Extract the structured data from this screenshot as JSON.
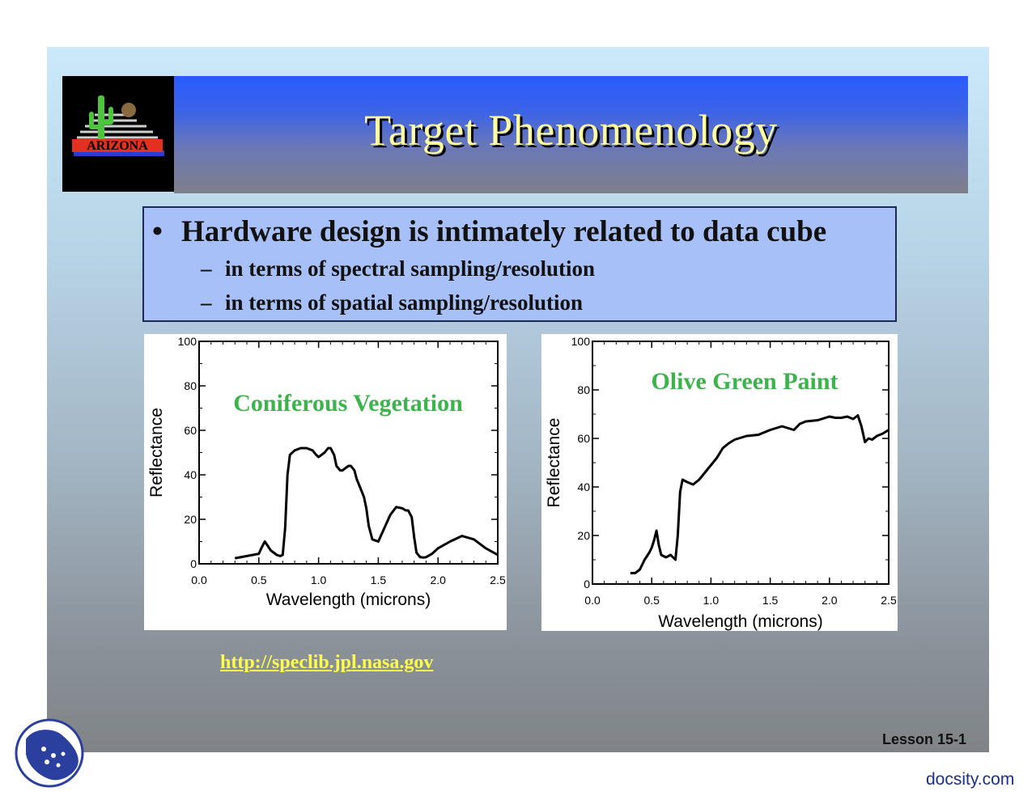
{
  "slide": {
    "title": "Target Phenomenology",
    "logo_text": "ARIZONA",
    "bullet": "Hardware design is intimately related to data cube",
    "bullet_marker": "•",
    "sub_marker": "–",
    "subbullets": [
      "in terms of spectral sampling/resolution",
      "in terms of spatial sampling/resolution"
    ],
    "link": "http://speclib.jpl.nasa.gov",
    "lesson": "Lesson 15-1",
    "watermark": "docsity.com"
  },
  "colors": {
    "title_text": "#ffffa0",
    "chart_label": "#3cb44b",
    "link": "#ffff44"
  },
  "chart_data": [
    {
      "type": "line",
      "title": "Coniferous Vegetation",
      "xlabel": "Wavelength (microns)",
      "ylabel": "Reflectance",
      "xlim": [
        0.0,
        2.5
      ],
      "ylim": [
        0,
        100
      ],
      "xticks": [
        "0.0",
        "0.5",
        "1.0",
        "1.5",
        "2.0",
        "2.5"
      ],
      "yticks": [
        "0",
        "20",
        "40",
        "60",
        "80",
        "100"
      ],
      "grid": false,
      "series": [
        {
          "x": [
            0.3,
            0.4,
            0.5,
            0.52,
            0.55,
            0.6,
            0.65,
            0.68,
            0.7,
            0.72,
            0.74,
            0.76,
            0.8,
            0.85,
            0.9,
            0.95,
            0.98,
            1.0,
            1.05,
            1.08,
            1.1,
            1.13,
            1.15,
            1.18,
            1.2,
            1.25,
            1.27,
            1.3,
            1.32,
            1.35,
            1.38,
            1.4,
            1.42,
            1.45,
            1.5,
            1.55,
            1.6,
            1.65,
            1.7,
            1.73,
            1.75,
            1.78,
            1.8,
            1.82,
            1.85,
            1.88,
            1.9,
            1.95,
            2.0,
            2.1,
            2.2,
            2.3,
            2.4,
            2.5
          ],
          "y": [
            2.5,
            3.5,
            4.5,
            7,
            10,
            6,
            4,
            3.5,
            4,
            16,
            40,
            49,
            51,
            52,
            52,
            51,
            49,
            48,
            50,
            52,
            52,
            49,
            44,
            42,
            42,
            44,
            44,
            42,
            38,
            34,
            30,
            25,
            17,
            11,
            10,
            16,
            22,
            25.5,
            25,
            24,
            24,
            21,
            12,
            5,
            3,
            2.8,
            3,
            4.5,
            7,
            10,
            12.5,
            11,
            7,
            4
          ]
        }
      ]
    },
    {
      "type": "line",
      "title": "Olive Green Paint",
      "xlabel": "Wavelength (microns)",
      "ylabel": "Reflectance",
      "xlim": [
        0.0,
        2.5
      ],
      "ylim": [
        0,
        100
      ],
      "xticks": [
        "0.0",
        "0.5",
        "1.0",
        "1.5",
        "2.0",
        "2.5"
      ],
      "yticks": [
        "0",
        "20",
        "40",
        "60",
        "80",
        "100"
      ],
      "grid": false,
      "series": [
        {
          "x": [
            0.32,
            0.36,
            0.4,
            0.44,
            0.48,
            0.5,
            0.52,
            0.54,
            0.56,
            0.58,
            0.62,
            0.66,
            0.7,
            0.72,
            0.74,
            0.76,
            0.78,
            0.8,
            0.85,
            0.9,
            0.95,
            1.0,
            1.05,
            1.1,
            1.15,
            1.2,
            1.3,
            1.4,
            1.5,
            1.6,
            1.7,
            1.75,
            1.8,
            1.9,
            2.0,
            2.05,
            2.1,
            2.15,
            2.2,
            2.24,
            2.27,
            2.3,
            2.33,
            2.36,
            2.4,
            2.45,
            2.5
          ],
          "y": [
            4.5,
            4.5,
            6,
            10,
            13,
            15,
            18,
            22,
            16,
            12,
            11,
            12,
            10,
            20,
            38,
            43,
            42.5,
            42,
            41,
            43,
            46,
            49,
            52,
            56,
            58,
            59.5,
            61,
            61.5,
            63.5,
            65,
            63.5,
            66,
            67,
            67.5,
            69,
            68.5,
            68.5,
            69,
            68,
            69.5,
            65,
            58.5,
            60,
            59.5,
            61,
            62,
            63.5
          ]
        }
      ]
    }
  ]
}
